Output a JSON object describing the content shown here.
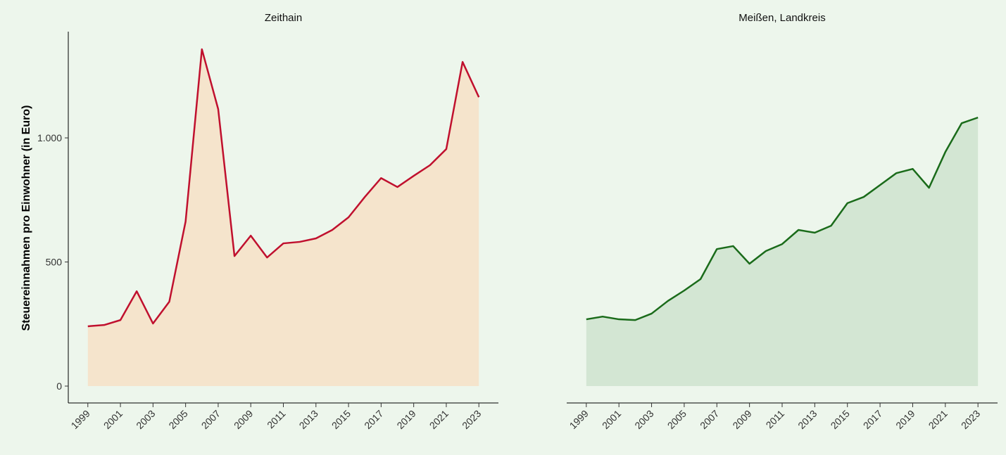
{
  "chart_data": [
    {
      "type": "area",
      "title": "Zeithain",
      "ylabel": "Steuereinnahmen pro Einwohner (in Euro)",
      "x": [
        1999,
        2000,
        2001,
        2002,
        2003,
        2004,
        2005,
        2006,
        2007,
        2008,
        2009,
        2010,
        2011,
        2012,
        2013,
        2014,
        2015,
        2016,
        2017,
        2018,
        2019,
        2020,
        2021,
        2022,
        2023
      ],
      "series": [
        {
          "color": "#c0102e",
          "fill": "#f5e4cc",
          "values": [
            241,
            246,
            266,
            382,
            252,
            340,
            663,
            1357,
            1116,
            524,
            606,
            518,
            575,
            581,
            595,
            629,
            680,
            762,
            838,
            802,
            847,
            890,
            955,
            1306,
            1164
          ]
        }
      ],
      "xlim": [
        1997.8,
        2024.2
      ],
      "xticks": [
        1999,
        2001,
        2003,
        2005,
        2007,
        2009,
        2011,
        2013,
        2015,
        2017,
        2019,
        2021,
        2023
      ],
      "ylim": [
        -68,
        1428
      ],
      "yticks": [
        0,
        500,
        {
          "value": 1000,
          "label": "1.000"
        }
      ]
    },
    {
      "type": "area",
      "title": "Meißen, Landkreis",
      "x": [
        1999,
        2000,
        2001,
        2002,
        2003,
        2004,
        2005,
        2006,
        2007,
        2008,
        2009,
        2010,
        2011,
        2012,
        2013,
        2014,
        2015,
        2016,
        2017,
        2018,
        2019,
        2020,
        2021,
        2022,
        2023
      ],
      "series": [
        {
          "color": "#1a6b1a",
          "fill": "#d3e6d3",
          "values": [
            269,
            280,
            269,
            266,
            292,
            343,
            385,
            431,
            552,
            564,
            493,
            544,
            572,
            629,
            618,
            646,
            737,
            762,
            810,
            858,
            875,
            799,
            943,
            1059,
            1082
          ]
        }
      ],
      "xlim": [
        1997.8,
        2024.2
      ],
      "xticks": [
        1999,
        2001,
        2003,
        2005,
        2007,
        2009,
        2011,
        2013,
        2015,
        2017,
        2019,
        2021,
        2023
      ],
      "ylim": [
        -68,
        1428
      ]
    }
  ]
}
